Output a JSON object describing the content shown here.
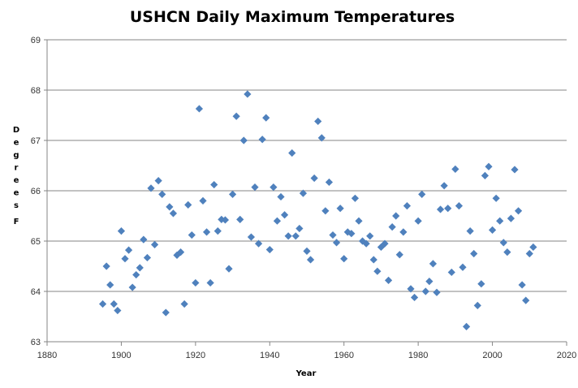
{
  "chart_data": {
    "type": "scatter",
    "title": "USHCN Daily Maximum Temperatures",
    "xlabel": "Year",
    "ylabel": "Degrees F",
    "xlim": [
      1880,
      2020
    ],
    "ylim": [
      63,
      69
    ],
    "xticks": [
      1880,
      1900,
      1920,
      1940,
      1960,
      1980,
      2000,
      2020
    ],
    "yticks": [
      63,
      64,
      65,
      66,
      67,
      68,
      69
    ],
    "grid": "horizontal",
    "marker": "diamond",
    "color": "#4F81BD",
    "x": [
      1895,
      1896,
      1897,
      1898,
      1899,
      1900,
      1901,
      1902,
      1903,
      1904,
      1905,
      1906,
      1907,
      1908,
      1909,
      1910,
      1911,
      1912,
      1913,
      1914,
      1915,
      1916,
      1917,
      1918,
      1919,
      1920,
      1921,
      1922,
      1923,
      1924,
      1925,
      1926,
      1927,
      1928,
      1929,
      1930,
      1931,
      1932,
      1933,
      1934,
      1935,
      1936,
      1937,
      1938,
      1939,
      1940,
      1941,
      1942,
      1943,
      1944,
      1945,
      1946,
      1947,
      1948,
      1949,
      1950,
      1951,
      1952,
      1953,
      1954,
      1955,
      1956,
      1957,
      1958,
      1959,
      1960,
      1961,
      1962,
      1963,
      1964,
      1965,
      1966,
      1967,
      1968,
      1969,
      1970,
      1971,
      1972,
      1973,
      1974,
      1975,
      1976,
      1977,
      1978,
      1979,
      1980,
      1981,
      1982,
      1983,
      1984,
      1985,
      1986,
      1987,
      1988,
      1989,
      1990,
      1991,
      1992,
      1993,
      1994,
      1995,
      1996,
      1997,
      1998,
      1999,
      2000,
      2001,
      2002,
      2003,
      2004,
      2005,
      2006,
      2007,
      2008,
      2009,
      2010,
      2011
    ],
    "y": [
      63.75,
      64.5,
      64.13,
      63.75,
      63.62,
      65.2,
      64.65,
      64.82,
      64.08,
      64.33,
      64.47,
      65.03,
      64.67,
      66.05,
      64.93,
      66.2,
      65.93,
      63.58,
      65.68,
      65.55,
      64.72,
      64.78,
      63.75,
      65.72,
      65.12,
      64.17,
      67.63,
      65.8,
      65.18,
      64.17,
      66.12,
      65.2,
      65.43,
      65.42,
      64.45,
      65.93,
      67.48,
      65.43,
      67.0,
      67.92,
      65.08,
      66.07,
      64.95,
      67.02,
      67.45,
      64.83,
      66.07,
      65.4,
      65.88,
      65.52,
      65.1,
      66.75,
      65.1,
      65.25,
      65.95,
      64.8,
      64.63,
      66.25,
      67.38,
      67.05,
      65.6,
      66.17,
      65.12,
      64.97,
      65.65,
      64.65,
      65.18,
      65.15,
      65.85,
      65.4,
      65.0,
      64.95,
      65.1,
      64.63,
      64.4,
      64.88,
      64.95,
      64.22,
      65.28,
      65.5,
      64.73,
      65.18,
      65.7,
      64.05,
      63.88,
      65.4,
      65.93,
      64.0,
      64.2,
      64.55,
      63.98,
      65.63,
      66.1,
      65.65,
      64.38,
      66.43,
      65.7,
      64.48,
      63.3,
      65.2,
      64.75,
      63.72,
      64.15,
      66.3,
      66.48,
      65.22,
      65.85,
      65.4,
      64.97,
      64.78,
      65.45,
      66.42,
      65.6,
      64.13,
      63.82,
      64.75,
      64.88
    ]
  }
}
